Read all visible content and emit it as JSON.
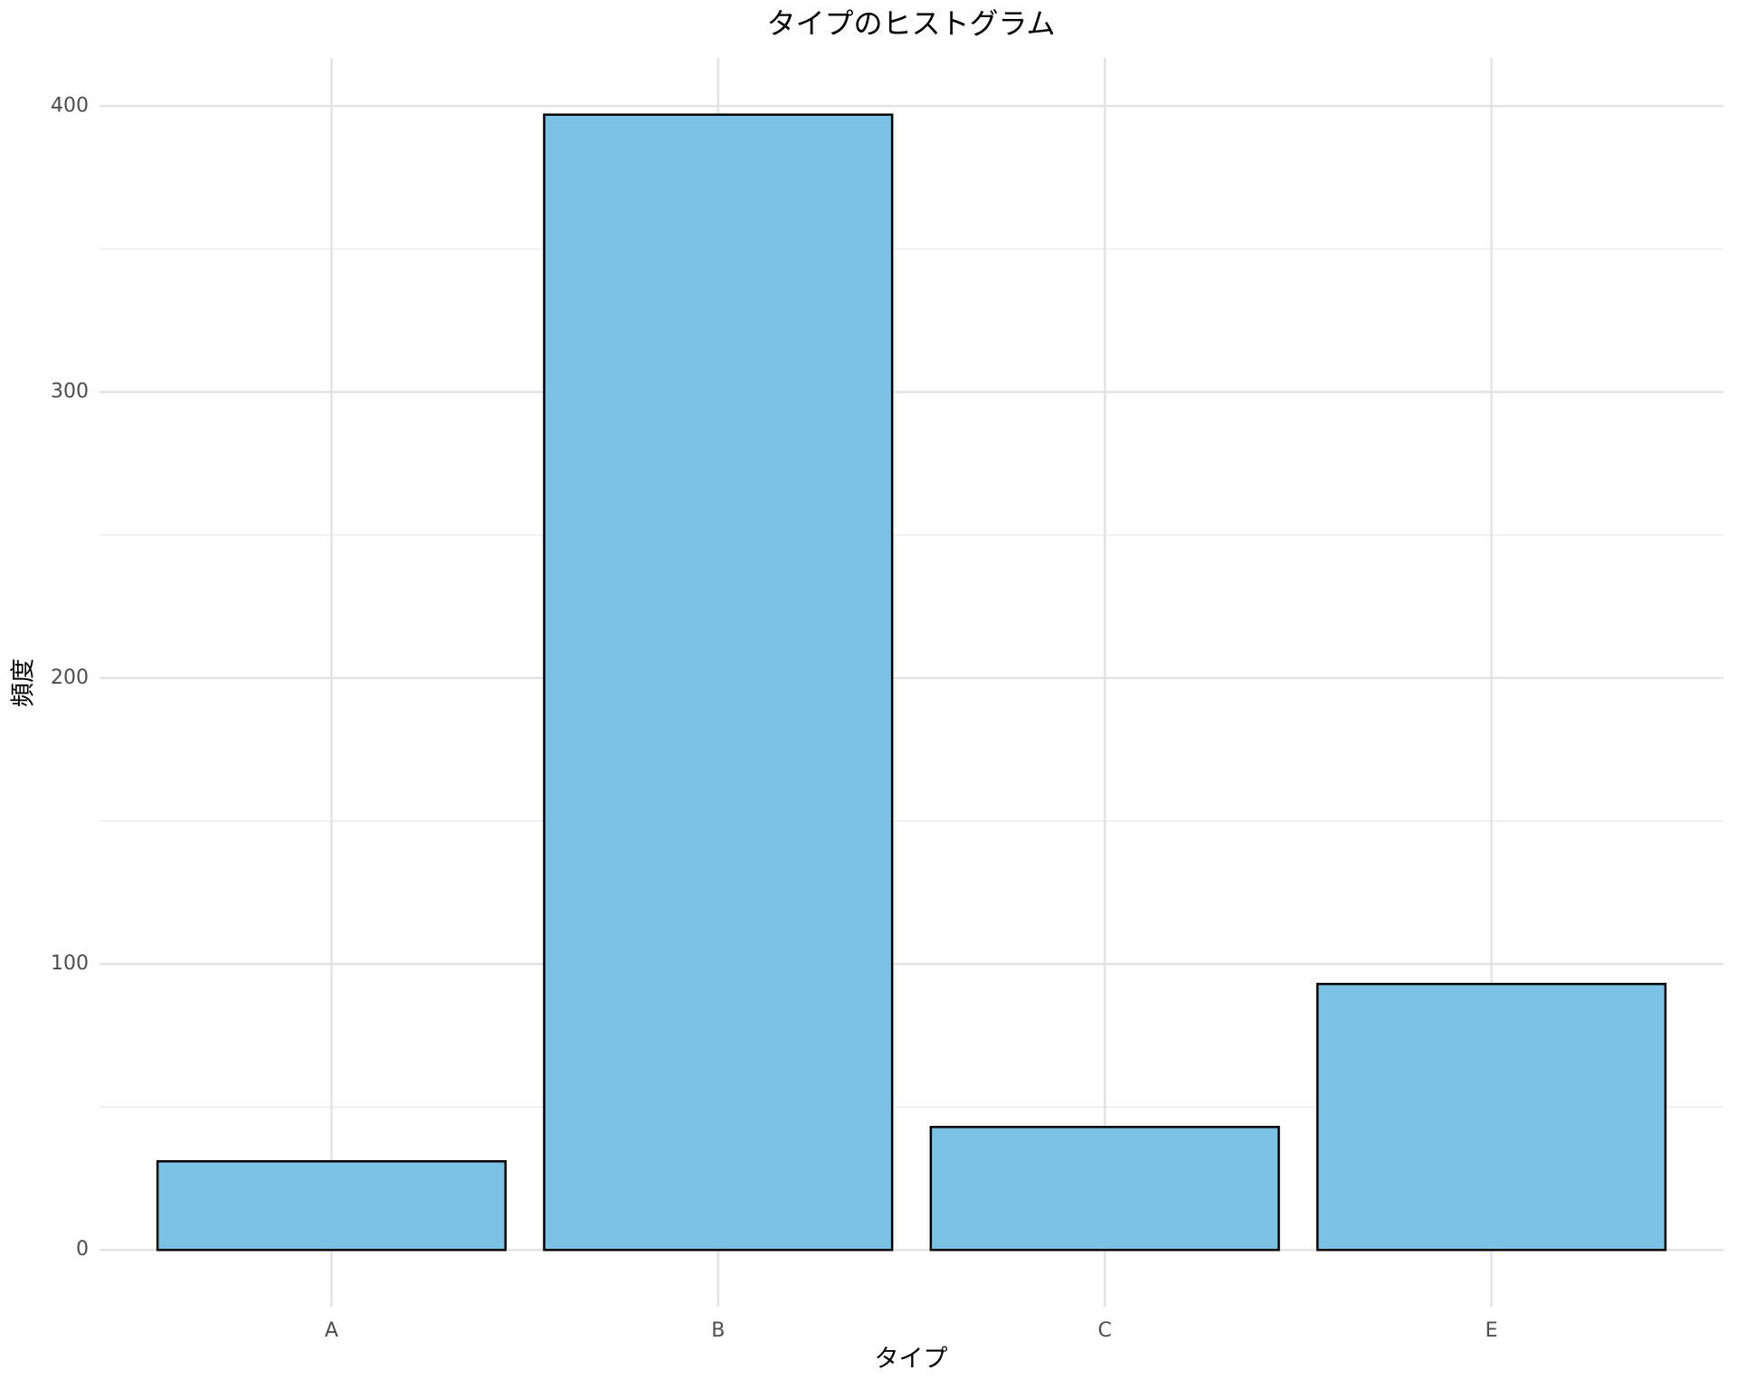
{
  "chart_data": {
    "type": "bar",
    "title": "タイプのヒストグラム",
    "x_label": "タイプ",
    "y_label": "頻度",
    "categories": [
      "A",
      "B",
      "C",
      "E"
    ],
    "values": [
      31,
      397,
      43,
      93
    ],
    "color": "#7BC2E4",
    "edge_color": "#000000",
    "ylim": [
      -19.85,
      416.85
    ],
    "yticks": [
      0,
      100,
      200,
      300,
      400
    ],
    "minor_yticks": [
      50,
      150,
      250,
      350
    ],
    "grid": true
  }
}
